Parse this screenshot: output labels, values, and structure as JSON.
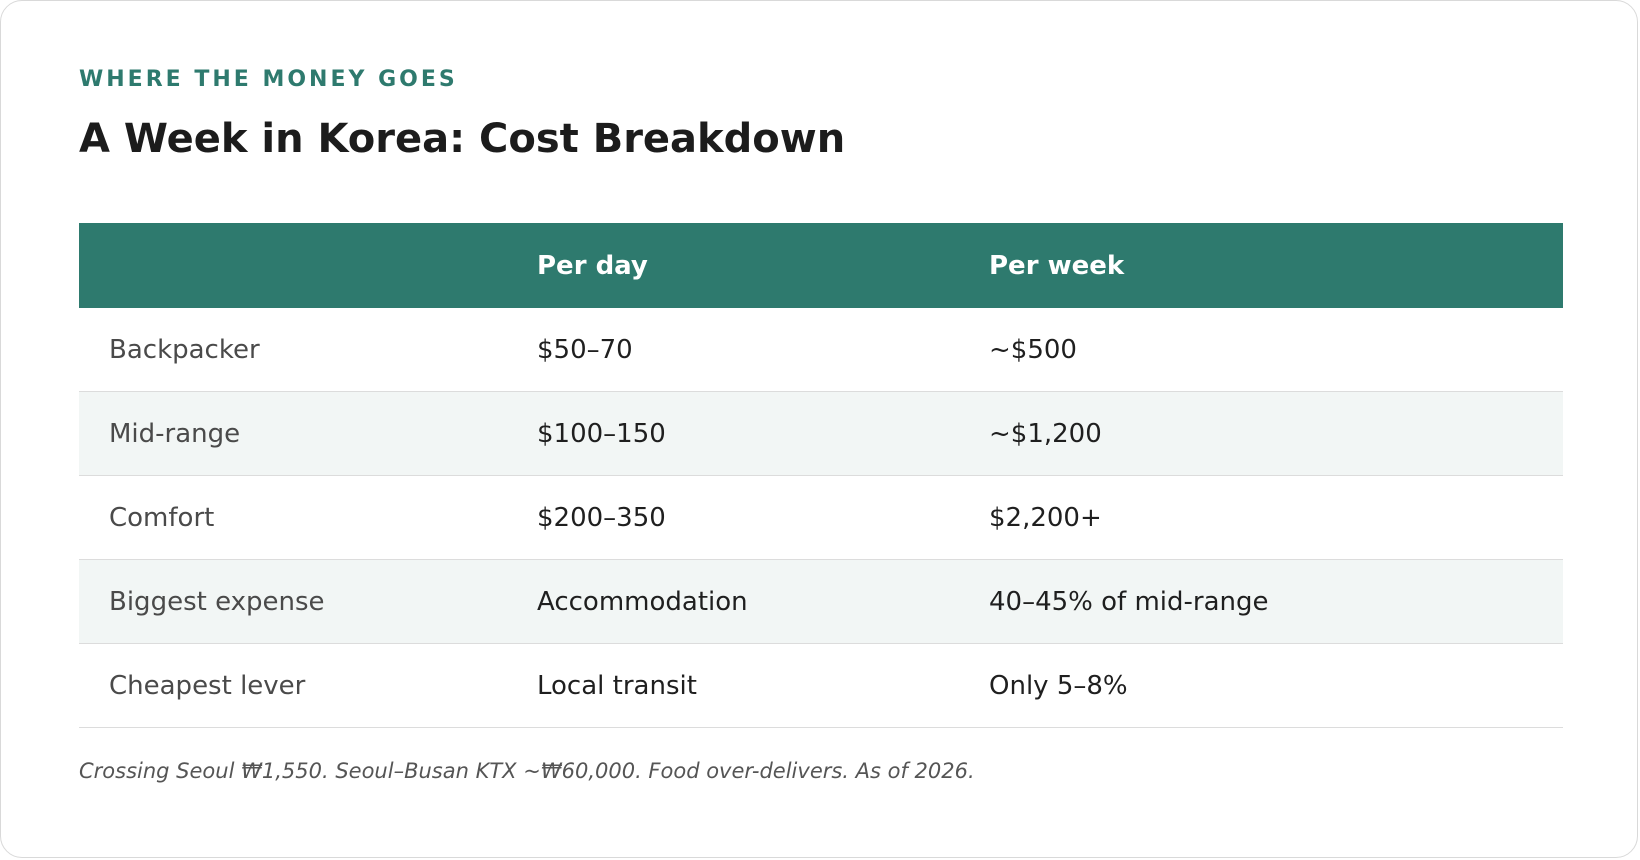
{
  "kicker": "WHERE THE MONEY GOES",
  "title": "A Week in Korea: Cost Breakdown",
  "table": {
    "headers": [
      "",
      "Per day",
      "Per week"
    ],
    "rows": [
      [
        "Backpacker",
        "$50–70",
        "~$500"
      ],
      [
        "Mid-range",
        "$100–150",
        "~$1,200"
      ],
      [
        "Comfort",
        "$200–350",
        "$2,200+"
      ],
      [
        "Biggest expense",
        "Accommodation",
        "40–45% of mid-range"
      ],
      [
        "Cheapest lever",
        "Local transit",
        "Only 5–8%"
      ]
    ]
  },
  "footnote": "Crossing Seoul ₩1,550. Seoul–Busan KTX ~₩60,000. Food over-delivers. As of 2026.",
  "colors": {
    "accent": "#2e7a6e",
    "stripe": "#f2f6f5",
    "text": "#1c1c1c"
  }
}
